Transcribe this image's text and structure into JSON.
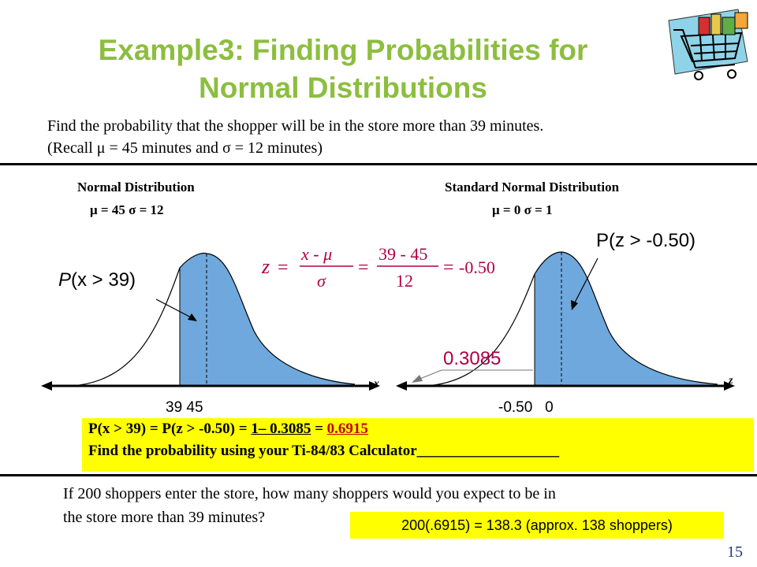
{
  "title_line1": "Example3:  Finding Probabilities for",
  "title_line2": "Normal Distributions",
  "question_line1": "Find the probability that the shopper will be in the store more than 39 minutes.",
  "question_line2": "(Recall μ = 45 minutes and σ = 12 minutes)",
  "left_panel": {
    "heading": "Normal Distribution",
    "params": "μ = 45  σ = 12",
    "prob_label_var": "P",
    "prob_label_rest": "(x > 39)",
    "tick_labels": "39 45",
    "axis_name": "x"
  },
  "right_panel": {
    "heading": "Standard Normal Distribution",
    "params": "μ = 0  σ = 1",
    "prob_label": "P(z > -0.50)",
    "tick_labels": "-0.50   0",
    "axis_name": "z",
    "area_value": "0.3085"
  },
  "formula": {
    "z": "z",
    "eq": "=",
    "num1": "x - μ",
    "den1": "σ",
    "num2": "39 - 45",
    "den2": "12",
    "result": "-0.50"
  },
  "yellow_box": {
    "line1_a": "P(x > 39) = P(z > -0.50) = ",
    "line1_b": "1– 0.3085",
    "line1_c": " = ",
    "line1_d": "0.6915",
    "line2": "Find the probability using your Ti-84/83 Calculator___________________"
  },
  "question2_line1": "If 200 shoppers enter the store, how many shoppers would  you expect to be in",
  "question2_line2": "the store more than 39 minutes?",
  "answer_box": "200(.6915) = 138.3 (approx. 138 shoppers)",
  "page_number": "15",
  "colors": {
    "title": "#8cbe3f",
    "curve_fill": "#6fa8dc",
    "formula": "#b00044",
    "highlight": "#ffff00"
  }
}
